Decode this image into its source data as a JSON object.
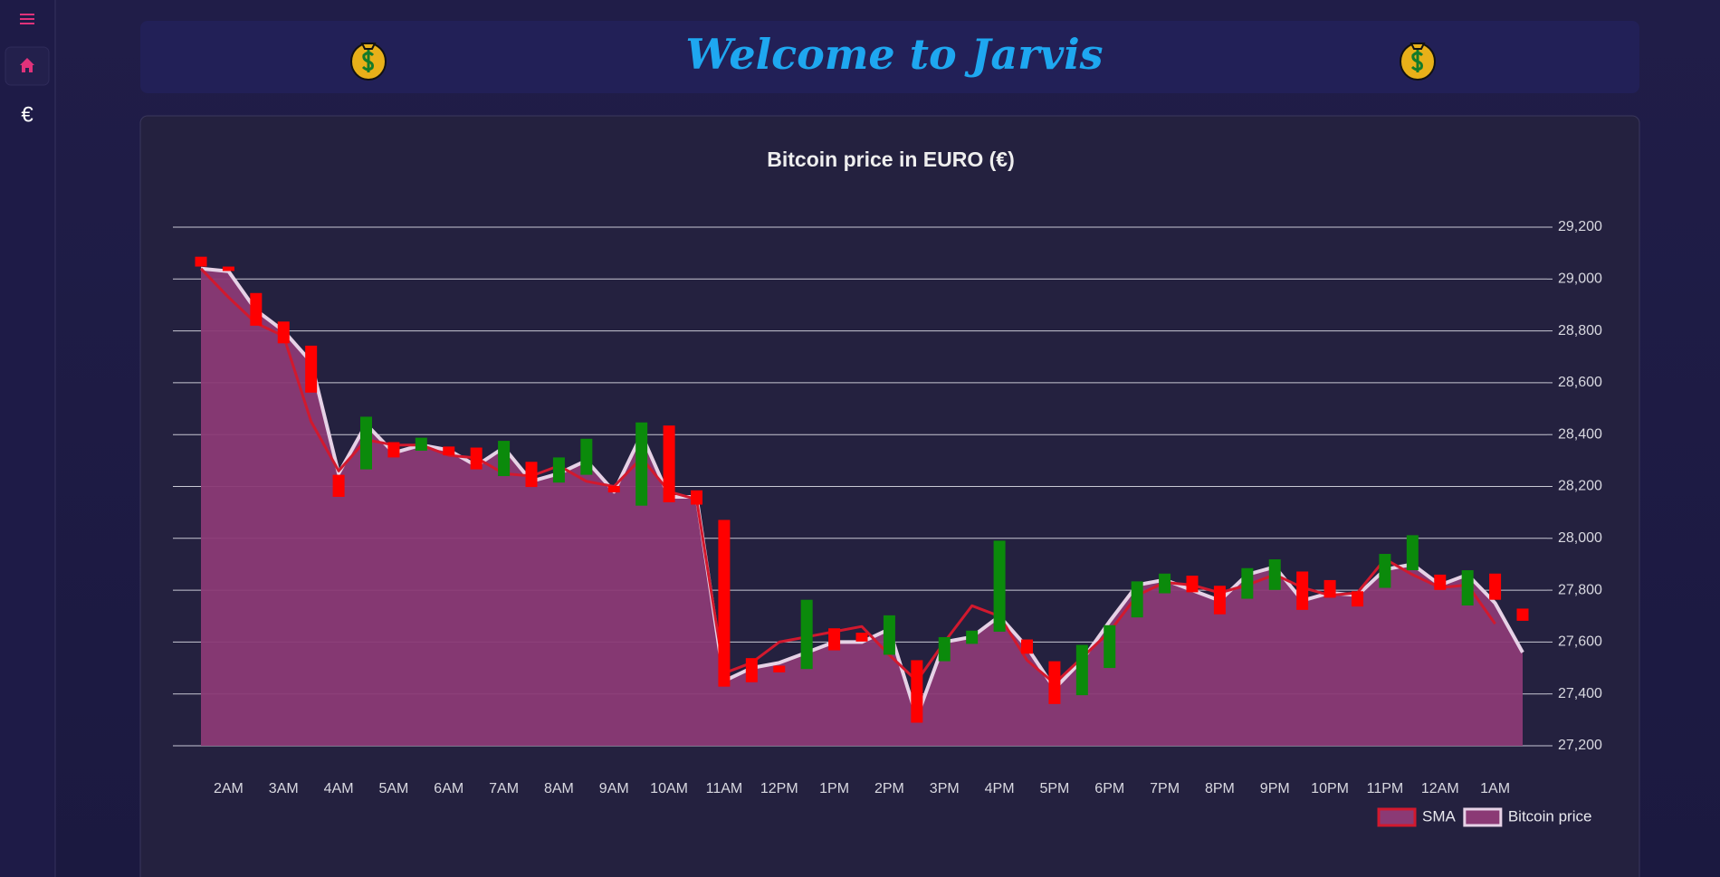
{
  "header": {
    "title": "Welcome to Jarvis"
  },
  "sidebar": {
    "currency": "€"
  },
  "chart_data": {
    "type": "area",
    "title": "Bitcoin price in EURO (€)",
    "categories": [
      null,
      "2AM",
      null,
      "3AM",
      null,
      "4AM",
      null,
      "5AM",
      null,
      "6AM",
      null,
      "7AM",
      null,
      "8AM",
      null,
      "9AM",
      null,
      "10AM",
      null,
      "11AM",
      null,
      "12PM",
      null,
      "1PM",
      null,
      "2PM",
      null,
      "3PM",
      null,
      "4PM",
      null,
      "5PM",
      null,
      "6PM",
      null,
      "7PM",
      null,
      "8PM",
      null,
      "9PM",
      null,
      "10PM",
      null,
      "11PM",
      null,
      "12AM",
      null,
      "1AM",
      null
    ],
    "series": [
      {
        "name": "SMA",
        "color": "#d2192e",
        "fill": "#8b3a75",
        "values": [
          29040,
          28930,
          28830,
          28780,
          28450,
          28260,
          28380,
          28360,
          28360,
          28320,
          28310,
          28250,
          28240,
          28280,
          28220,
          28200,
          28310,
          28180,
          28150,
          27480,
          27520,
          27600,
          27620,
          27640,
          27660,
          27550,
          27450,
          27600,
          27740,
          27700,
          27530,
          27440,
          27540,
          27640,
          27780,
          27830,
          27820,
          27790,
          27820,
          27860,
          27810,
          27780,
          27790,
          27920,
          27860,
          27810,
          27820,
          27670,
          null
        ]
      },
      {
        "name": "Bitcoin price",
        "color": "#e6d2e6",
        "fill": "#8b3a75",
        "area": true,
        "values": [
          29040,
          29030,
          28880,
          28800,
          28680,
          28250,
          28440,
          28330,
          28360,
          28340,
          28280,
          28350,
          28220,
          28250,
          28300,
          28180,
          28400,
          28160,
          28160,
          27450,
          27500,
          27520,
          27560,
          27600,
          27600,
          27650,
          27310,
          27600,
          27620,
          27700,
          27580,
          27420,
          27530,
          27680,
          27820,
          27840,
          27800,
          27760,
          27860,
          27890,
          27760,
          27790,
          27780,
          27880,
          27900,
          27820,
          27860,
          27750,
          27560
        ]
      }
    ],
    "candles": {
      "up_color": "#0b8a0b",
      "down_color": "#ff0000",
      "open": [
        29086,
        29048,
        28946,
        28836,
        28743,
        28245,
        28266,
        28371,
        28338,
        28354,
        28350,
        28240,
        28295,
        28215,
        28245,
        28202,
        28126,
        28435,
        28185,
        28071,
        27538,
        27509,
        27496,
        27653,
        27636,
        27551,
        27530,
        27526,
        27593,
        27640,
        27610,
        27526,
        27395,
        27500,
        27695,
        27788,
        27856,
        27817,
        27767,
        27801,
        27872,
        27839,
        27796,
        27809,
        27877,
        27860,
        27741,
        27864,
        27729
      ],
      "close": [
        29048,
        29031,
        28820,
        28752,
        28562,
        28160,
        28469,
        28312,
        28388,
        28320,
        28266,
        28376,
        28198,
        28312,
        28384,
        28177,
        28447,
        28139,
        28130,
        27428,
        27445,
        27483,
        27763,
        27568,
        27602,
        27703,
        27289,
        27619,
        27644,
        27991,
        27555,
        27361,
        27589,
        27665,
        27834,
        27864,
        27792,
        27707,
        27885,
        27919,
        27724,
        27771,
        27737,
        27940,
        28012,
        27801,
        27877,
        27763,
        27682
      ]
    },
    "ylim": [
      27200,
      29200
    ],
    "yticks": [
      {
        "value": 27200,
        "label": "27,200"
      },
      {
        "value": 27400,
        "label": "27,400"
      },
      {
        "value": 27600,
        "label": "27,600"
      },
      {
        "value": 27800,
        "label": "27,800"
      },
      {
        "value": 28000,
        "label": "28,000"
      },
      {
        "value": 28200,
        "label": "28,200"
      },
      {
        "value": 28400,
        "label": "28,400"
      },
      {
        "value": 28600,
        "label": "28,600"
      },
      {
        "value": 28800,
        "label": "28,800"
      },
      {
        "value": 29000,
        "label": "29,000"
      },
      {
        "value": 29200,
        "label": "29,200"
      }
    ],
    "grid": true,
    "legend": "bottom-right"
  }
}
